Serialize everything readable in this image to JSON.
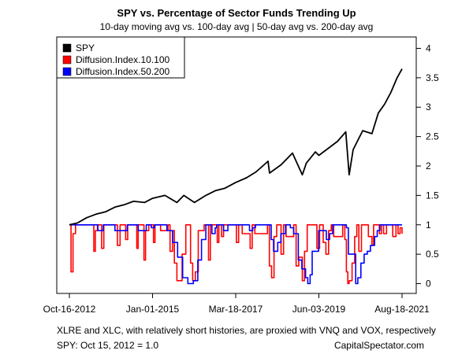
{
  "chart_data": {
    "type": "line",
    "title": "SPY vs. Percentage of Sector Funds Trending Up",
    "subtitle": "10-day moving avg vs. 100-day avg | 50-day avg vs. 200-day avg",
    "x_tick_labels": [
      "Oct-16-2012",
      "Jan-01-2015",
      "Mar-18-2017",
      "Jun-03-2019",
      "Aug-18-2021"
    ],
    "x_tick_dates": [
      "2012-10-16",
      "2015-01-01",
      "2017-03-18",
      "2019-06-03",
      "2021-08-18"
    ],
    "xlim": [
      "2012-10-16",
      "2021-08-18"
    ],
    "ylim": [
      -0.1,
      4.1
    ],
    "y_ticks": [
      0,
      0.5,
      1,
      1.5,
      2,
      2.5,
      3,
      3.5,
      4
    ],
    "y_axis_side": "right",
    "grid": false,
    "legend_position": "top-left",
    "series": [
      {
        "name": "SPY",
        "color": "#000000",
        "x": [
          "2012-10-16",
          "2013-01-01",
          "2013-04-01",
          "2013-07-01",
          "2013-10-01",
          "2014-01-01",
          "2014-04-01",
          "2014-07-01",
          "2014-10-15",
          "2015-01-01",
          "2015-05-01",
          "2015-08-25",
          "2015-11-01",
          "2016-02-11",
          "2016-06-01",
          "2016-09-01",
          "2016-12-01",
          "2017-03-18",
          "2017-07-01",
          "2017-10-01",
          "2018-01-26",
          "2018-02-09",
          "2018-06-01",
          "2018-09-20",
          "2018-12-24",
          "2019-02-01",
          "2019-04-30",
          "2019-06-03",
          "2019-09-01",
          "2019-12-01",
          "2020-02-19",
          "2020-03-23",
          "2020-05-01",
          "2020-08-01",
          "2020-10-30",
          "2020-12-31",
          "2021-03-01",
          "2021-05-01",
          "2021-07-01",
          "2021-08-18"
        ],
        "values": [
          1.0,
          1.03,
          1.12,
          1.18,
          1.22,
          1.3,
          1.34,
          1.4,
          1.38,
          1.45,
          1.5,
          1.38,
          1.5,
          1.38,
          1.5,
          1.58,
          1.62,
          1.72,
          1.8,
          1.9,
          2.08,
          1.88,
          2.02,
          2.22,
          1.85,
          2.05,
          2.24,
          2.18,
          2.3,
          2.42,
          2.58,
          1.85,
          2.28,
          2.6,
          2.55,
          2.9,
          3.05,
          3.25,
          3.5,
          3.65
        ]
      },
      {
        "name": "Diffusion.Index.10.100",
        "color": "#ff0000",
        "x": [
          "2012-10-16",
          "2012-11-01",
          "2012-11-20",
          "2012-12-15",
          "2013-02-01",
          "2013-06-10",
          "2013-06-25",
          "2013-07-15",
          "2013-08-25",
          "2013-09-15",
          "2014-01-25",
          "2014-02-20",
          "2014-04-15",
          "2014-05-05",
          "2014-08-01",
          "2014-08-15",
          "2014-10-10",
          "2014-10-25",
          "2014-11-25",
          "2015-01-10",
          "2015-01-25",
          "2015-03-20",
          "2015-06-01",
          "2015-06-20",
          "2015-07-15",
          "2015-08-01",
          "2015-08-25",
          "2015-10-15",
          "2015-11-20",
          "2016-01-05",
          "2016-01-25",
          "2016-02-20",
          "2016-03-20",
          "2016-05-15",
          "2016-06-27",
          "2016-07-15",
          "2016-09-20",
          "2016-10-05",
          "2016-11-01",
          "2016-11-20",
          "2017-03-01",
          "2017-03-25",
          "2017-04-15",
          "2017-05-20",
          "2017-08-05",
          "2017-08-25",
          "2017-09-20",
          "2018-01-20",
          "2018-02-08",
          "2018-03-01",
          "2018-03-25",
          "2018-04-20",
          "2018-06-01",
          "2018-06-25",
          "2018-07-20",
          "2018-10-01",
          "2018-10-25",
          "2018-11-20",
          "2018-12-24",
          "2019-01-15",
          "2019-02-10",
          "2019-04-01",
          "2019-05-15",
          "2019-06-10",
          "2019-07-15",
          "2019-08-10",
          "2019-09-05",
          "2019-10-01",
          "2019-10-25",
          "2020-01-20",
          "2020-02-10",
          "2020-02-25",
          "2020-03-10",
          "2020-03-23",
          "2020-04-20",
          "2020-05-15",
          "2020-06-05",
          "2020-06-25",
          "2020-07-20",
          "2020-09-01",
          "2020-09-25",
          "2020-10-30",
          "2020-11-15",
          "2021-01-10",
          "2021-01-30",
          "2021-02-20",
          "2021-03-20",
          "2021-05-01",
          "2021-05-20",
          "2021-06-20",
          "2021-07-10",
          "2021-07-30",
          "2021-08-18"
        ],
        "values": [
          1.0,
          0.2,
          0.85,
          1.0,
          1.0,
          0.55,
          0.9,
          1.0,
          0.6,
          1.0,
          0.65,
          1.0,
          0.75,
          1.0,
          0.6,
          1.0,
          0.4,
          0.9,
          1.0,
          0.7,
          1.0,
          0.9,
          1.0,
          0.55,
          0.9,
          0.35,
          0.05,
          0.5,
          1.0,
          0.35,
          0.05,
          0.2,
          0.9,
          1.0,
          0.4,
          1.0,
          0.7,
          1.0,
          0.8,
          1.0,
          1.0,
          0.7,
          1.0,
          0.85,
          0.6,
          1.0,
          0.85,
          1.0,
          0.3,
          0.1,
          0.8,
          1.0,
          0.5,
          1.0,
          0.8,
          1.0,
          0.3,
          0.45,
          0.05,
          0.55,
          1.0,
          1.0,
          0.6,
          1.0,
          0.7,
          0.5,
          0.9,
          1.0,
          0.8,
          1.0,
          0.75,
          0.2,
          0.0,
          0.05,
          0.35,
          0.8,
          1.0,
          0.55,
          1.0,
          1.0,
          0.8,
          0.65,
          1.0,
          0.85,
          1.0,
          0.85,
          1.0,
          1.0,
          0.8,
          1.0,
          0.85,
          0.95,
          0.85
        ]
      },
      {
        "name": "Diffusion.Index.50.200",
        "color": "#0000ff",
        "x": [
          "2012-10-16",
          "2013-06-01",
          "2013-07-20",
          "2013-09-10",
          "2014-01-01",
          "2014-05-01",
          "2014-08-15",
          "2014-11-01",
          "2014-12-20",
          "2015-01-20",
          "2015-05-20",
          "2015-07-15",
          "2015-09-01",
          "2015-10-20",
          "2015-12-10",
          "2016-02-01",
          "2016-03-15",
          "2016-04-20",
          "2016-06-01",
          "2016-07-30",
          "2016-08-30",
          "2016-09-15",
          "2016-11-20",
          "2017-01-01",
          "2017-06-01",
          "2017-07-30",
          "2017-08-30",
          "2017-09-25",
          "2018-02-25",
          "2018-03-20",
          "2018-04-30",
          "2018-05-30",
          "2018-07-15",
          "2018-08-30",
          "2018-10-01",
          "2018-11-15",
          "2018-12-20",
          "2019-01-25",
          "2019-02-15",
          "2019-03-10",
          "2019-03-30",
          "2019-06-01",
          "2019-08-15",
          "2019-09-15",
          "2019-10-15",
          "2019-12-01",
          "2020-02-25",
          "2020-03-15",
          "2020-05-25",
          "2020-06-15",
          "2020-07-15",
          "2020-08-15",
          "2020-09-15",
          "2020-10-15",
          "2020-11-25",
          "2020-12-20",
          "2021-01-15",
          "2021-03-01",
          "2021-08-18"
        ],
        "values": [
          1.0,
          1.0,
          0.9,
          1.0,
          0.9,
          1.0,
          0.9,
          1.0,
          0.95,
          1.0,
          0.9,
          0.7,
          0.45,
          0.1,
          0.0,
          0.05,
          0.4,
          0.75,
          1.0,
          0.85,
          0.95,
          1.0,
          0.9,
          1.0,
          1.0,
          0.9,
          0.95,
          1.0,
          0.75,
          0.55,
          0.7,
          0.85,
          1.0,
          0.95,
          0.85,
          0.4,
          0.25,
          0.1,
          0.0,
          0.15,
          0.55,
          0.9,
          0.75,
          0.85,
          1.0,
          1.0,
          0.95,
          0.5,
          0.0,
          0.1,
          0.35,
          0.5,
          0.55,
          0.65,
          0.8,
          0.9,
          1.0,
          1.0,
          1.0
        ]
      }
    ]
  },
  "notes": {
    "proxy_note": "XLRE and XLC, with relatively short histories, are proxied with VNQ and VOX, respectively",
    "base_note": "SPY: Oct 15, 2012 = 1.0",
    "credit": "CapitalSpectator.com"
  }
}
